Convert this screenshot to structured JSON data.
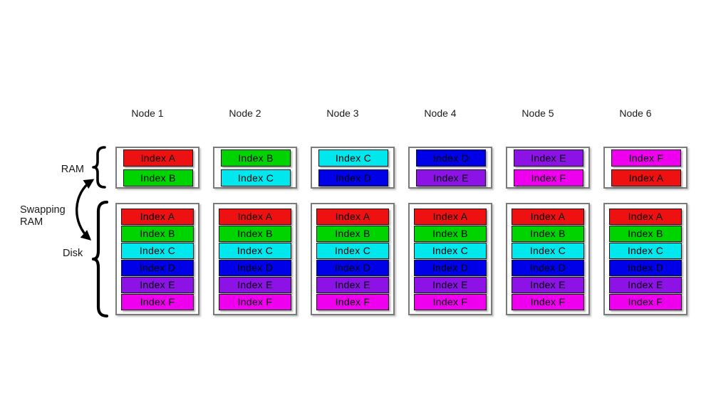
{
  "labels": {
    "ram": "RAM",
    "swapping_line1": "Swapping",
    "swapping_line2": "RAM",
    "disk": "Disk"
  },
  "index_colors": {
    "Index A": "#ee1111",
    "Index B": "#00d400",
    "Index C": "#00e8ee",
    "Index D": "#0000e8",
    "Index E": "#8c12e6",
    "Index F": "#ee00ee"
  },
  "nodes": [
    {
      "name": "Node 1",
      "ram": [
        "Index A",
        "Index B"
      ],
      "disk": [
        "Index A",
        "Index B",
        "Index C",
        "Index D",
        "Index E",
        "Index F"
      ]
    },
    {
      "name": "Node 2",
      "ram": [
        "Index B",
        "Index C"
      ],
      "disk": [
        "Index A",
        "Index B",
        "Index C",
        "Index D",
        "Index E",
        "Index F"
      ]
    },
    {
      "name": "Node 3",
      "ram": [
        "Index C",
        "Index D"
      ],
      "disk": [
        "Index A",
        "Index B",
        "Index C",
        "Index D",
        "Index E",
        "Index F"
      ]
    },
    {
      "name": "Node 4",
      "ram": [
        "Index D",
        "Index E"
      ],
      "disk": [
        "Index A",
        "Index B",
        "Index C",
        "Index D",
        "Index E",
        "Index F"
      ]
    },
    {
      "name": "Node 5",
      "ram": [
        "Index E",
        "Index F"
      ],
      "disk": [
        "Index A",
        "Index B",
        "Index C",
        "Index D",
        "Index E",
        "Index F"
      ]
    },
    {
      "name": "Node 6",
      "ram": [
        "Index F",
        "Index A"
      ],
      "disk": [
        "Index A",
        "Index B",
        "Index C",
        "Index D",
        "Index E",
        "Index F"
      ]
    }
  ]
}
